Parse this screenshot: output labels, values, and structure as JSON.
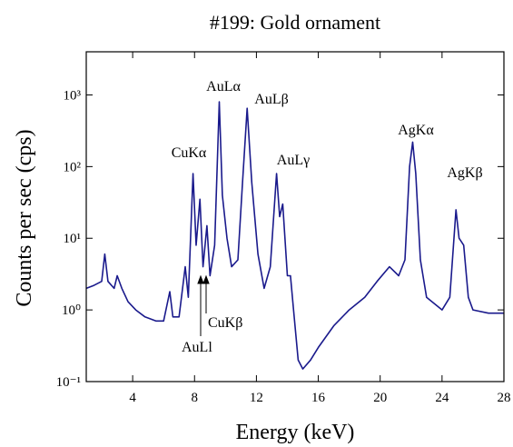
{
  "chart_data": {
    "type": "line",
    "title": "#199: Gold ornament",
    "x_label": "Energy (keV)",
    "y_label": "Counts per sec (cps)",
    "xlim": [
      1,
      28
    ],
    "ylim": [
      0.1,
      4000
    ],
    "log_y": true,
    "xticks": [
      4,
      8,
      12,
      16,
      20,
      24,
      28
    ],
    "yticks": [
      {
        "value": 0.1,
        "label": "10⁻¹"
      },
      {
        "value": 1,
        "label": "10⁰"
      },
      {
        "value": 10,
        "label": "10¹"
      },
      {
        "value": 100,
        "label": "10²"
      },
      {
        "value": 1000,
        "label": "10³"
      }
    ],
    "series": [
      {
        "color": "#1a1a8c",
        "x": [
          1,
          1.5,
          2.0,
          2.2,
          2.4,
          2.8,
          3.0,
          3.3,
          3.7,
          4.2,
          4.8,
          5.5,
          6.0,
          6.4,
          6.6,
          7.0,
          7.4,
          7.6,
          7.9,
          8.1,
          8.35,
          8.55,
          8.8,
          9.0,
          9.3,
          9.6,
          9.8,
          10.1,
          10.4,
          10.8,
          11.1,
          11.4,
          11.7,
          12.1,
          12.5,
          12.9,
          13.3,
          13.5,
          13.7,
          14.0,
          14.2,
          14.4,
          14.7,
          15.0,
          15.5,
          16,
          17,
          18,
          19,
          19.8,
          20.6,
          21.2,
          21.6,
          21.9,
          22.1,
          22.3,
          22.6,
          23,
          24,
          24.5,
          24.9,
          25.1,
          25.4,
          25.7,
          26,
          27,
          28
        ],
        "values": [
          2.0,
          2.2,
          2.5,
          6.0,
          2.5,
          2.0,
          3.0,
          2.0,
          1.3,
          1.0,
          0.8,
          0.7,
          0.7,
          1.8,
          0.8,
          0.8,
          4.0,
          1.5,
          80,
          8,
          35,
          4,
          15,
          3,
          8,
          800,
          40,
          10,
          4,
          5,
          60,
          650,
          60,
          6,
          2,
          4,
          80,
          20,
          30,
          3,
          3,
          1.0,
          0.2,
          0.15,
          0.2,
          0.3,
          0.6,
          1.0,
          1.5,
          2.5,
          4.0,
          3.0,
          5,
          100,
          220,
          80,
          5,
          1.5,
          1.0,
          1.5,
          25,
          10,
          8,
          1.5,
          1.0,
          0.9,
          0.9
        ]
      }
    ],
    "annotations": [
      "CuKα",
      "AuLα",
      "AuLβ",
      "AuLγ",
      "AgKα",
      "AgKβ",
      "CuKβ",
      "AuLl"
    ]
  }
}
